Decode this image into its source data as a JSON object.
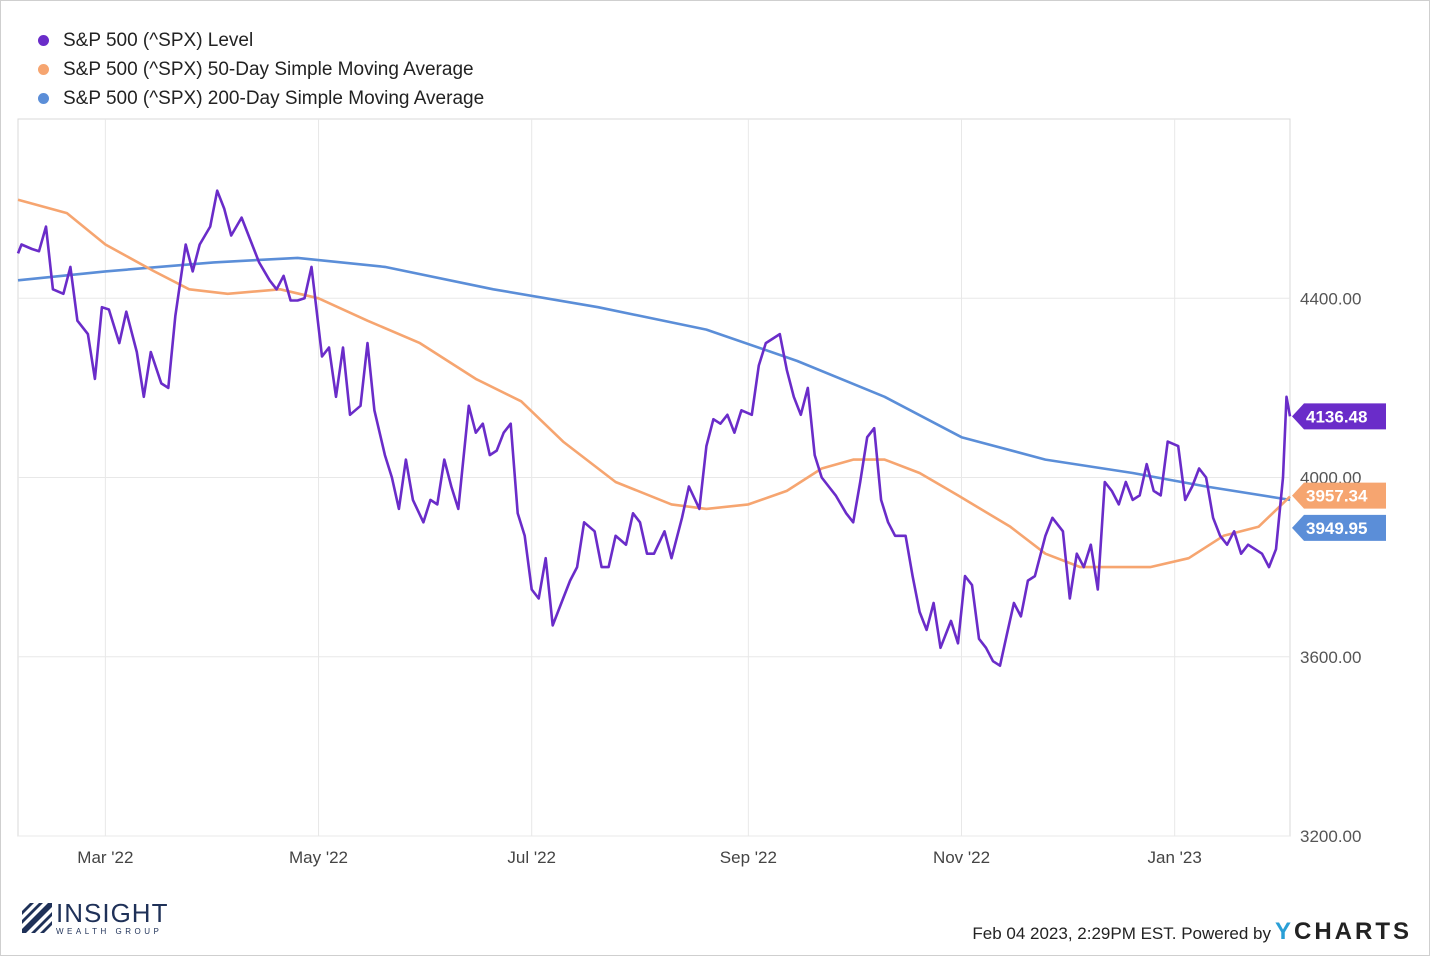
{
  "colors": {
    "level": "#6a2cc9",
    "sma50": "#f6a570",
    "sma200": "#5b8ed8",
    "grid": "#e8e8e8"
  },
  "chart_data": {
    "type": "line",
    "ylim": [
      3200,
      4800
    ],
    "yticks": [
      "4400.00",
      "4000.00",
      "3600.00",
      "3200.00"
    ],
    "ytick_values": [
      4400,
      4000,
      3600,
      3200
    ],
    "xticks": [
      "Mar '22",
      "May '22",
      "Jul '22",
      "Sep '22",
      "Nov '22",
      "Jan '23"
    ],
    "xtick_dates": [
      "2022-03-01",
      "2022-05-01",
      "2022-07-01",
      "2022-09-01",
      "2022-11-01",
      "2023-01-01"
    ],
    "xlim": [
      "2022-02-04",
      "2023-02-03"
    ],
    "grid": true,
    "legend_position": "top-left",
    "series": [
      {
        "name": "S&P 500 (^SPX) Level",
        "color": "#6a2cc9",
        "end_label": "4136.48",
        "points": [
          [
            "2022-02-04",
            4500
          ],
          [
            "2022-02-05",
            4520
          ],
          [
            "2022-02-08",
            4510
          ],
          [
            "2022-02-10",
            4505
          ],
          [
            "2022-02-12",
            4560
          ],
          [
            "2022-02-14",
            4420
          ],
          [
            "2022-02-17",
            4410
          ],
          [
            "2022-02-19",
            4470
          ],
          [
            "2022-02-21",
            4350
          ],
          [
            "2022-02-24",
            4320
          ],
          [
            "2022-02-26",
            4220
          ],
          [
            "2022-02-28",
            4380
          ],
          [
            "2022-03-02",
            4375
          ],
          [
            "2022-03-05",
            4300
          ],
          [
            "2022-03-07",
            4370
          ],
          [
            "2022-03-10",
            4280
          ],
          [
            "2022-03-12",
            4180
          ],
          [
            "2022-03-14",
            4280
          ],
          [
            "2022-03-17",
            4210
          ],
          [
            "2022-03-19",
            4200
          ],
          [
            "2022-03-21",
            4360
          ],
          [
            "2022-03-24",
            4520
          ],
          [
            "2022-03-26",
            4460
          ],
          [
            "2022-03-28",
            4520
          ],
          [
            "2022-03-31",
            4560
          ],
          [
            "2022-04-02",
            4640
          ],
          [
            "2022-04-04",
            4600
          ],
          [
            "2022-04-06",
            4540
          ],
          [
            "2022-04-09",
            4580
          ],
          [
            "2022-04-12",
            4520
          ],
          [
            "2022-04-14",
            4480
          ],
          [
            "2022-04-17",
            4440
          ],
          [
            "2022-04-19",
            4420
          ],
          [
            "2022-04-21",
            4450
          ],
          [
            "2022-04-23",
            4395
          ],
          [
            "2022-04-25",
            4395
          ],
          [
            "2022-04-27",
            4400
          ],
          [
            "2022-04-29",
            4470
          ],
          [
            "2022-05-02",
            4270
          ],
          [
            "2022-05-04",
            4290
          ],
          [
            "2022-05-06",
            4180
          ],
          [
            "2022-05-08",
            4290
          ],
          [
            "2022-05-10",
            4140
          ],
          [
            "2022-05-13",
            4160
          ],
          [
            "2022-05-15",
            4300
          ],
          [
            "2022-05-17",
            4150
          ],
          [
            "2022-05-20",
            4050
          ],
          [
            "2022-05-22",
            4000
          ],
          [
            "2022-05-24",
            3930
          ],
          [
            "2022-05-26",
            4040
          ],
          [
            "2022-05-28",
            3950
          ],
          [
            "2022-05-31",
            3900
          ],
          [
            "2022-06-02",
            3950
          ],
          [
            "2022-06-04",
            3940
          ],
          [
            "2022-06-06",
            4040
          ],
          [
            "2022-06-08",
            3980
          ],
          [
            "2022-06-10",
            3930
          ],
          [
            "2022-06-13",
            4160
          ],
          [
            "2022-06-15",
            4100
          ],
          [
            "2022-06-17",
            4120
          ],
          [
            "2022-06-19",
            4050
          ],
          [
            "2022-06-21",
            4060
          ],
          [
            "2022-06-23",
            4100
          ],
          [
            "2022-06-25",
            4120
          ],
          [
            "2022-06-27",
            3920
          ],
          [
            "2022-06-29",
            3870
          ],
          [
            "2022-07-01",
            3750
          ],
          [
            "2022-07-03",
            3730
          ],
          [
            "2022-07-05",
            3820
          ],
          [
            "2022-07-07",
            3670
          ],
          [
            "2022-07-10",
            3730
          ],
          [
            "2022-07-12",
            3770
          ],
          [
            "2022-07-14",
            3800
          ],
          [
            "2022-07-16",
            3900
          ],
          [
            "2022-07-19",
            3880
          ],
          [
            "2022-07-21",
            3800
          ],
          [
            "2022-07-23",
            3800
          ],
          [
            "2022-07-25",
            3870
          ],
          [
            "2022-07-28",
            3850
          ],
          [
            "2022-07-30",
            3920
          ],
          [
            "2022-08-01",
            3900
          ],
          [
            "2022-08-03",
            3830
          ],
          [
            "2022-08-05",
            3830
          ],
          [
            "2022-08-08",
            3880
          ],
          [
            "2022-08-10",
            3820
          ],
          [
            "2022-08-13",
            3910
          ],
          [
            "2022-08-15",
            3980
          ],
          [
            "2022-08-18",
            3930
          ],
          [
            "2022-08-20",
            4070
          ],
          [
            "2022-08-22",
            4130
          ],
          [
            "2022-08-24",
            4120
          ],
          [
            "2022-08-26",
            4140
          ],
          [
            "2022-08-28",
            4100
          ],
          [
            "2022-08-30",
            4150
          ],
          [
            "2022-09-02",
            4140
          ],
          [
            "2022-09-04",
            4250
          ],
          [
            "2022-09-06",
            4300
          ],
          [
            "2022-09-08",
            4310
          ],
          [
            "2022-09-10",
            4320
          ],
          [
            "2022-09-12",
            4240
          ],
          [
            "2022-09-14",
            4180
          ],
          [
            "2022-09-16",
            4140
          ],
          [
            "2022-09-18",
            4200
          ],
          [
            "2022-09-20",
            4050
          ],
          [
            "2022-09-22",
            4000
          ],
          [
            "2022-09-24",
            3980
          ],
          [
            "2022-09-26",
            3960
          ],
          [
            "2022-09-29",
            3920
          ],
          [
            "2022-10-01",
            3900
          ],
          [
            "2022-10-03",
            3990
          ],
          [
            "2022-10-05",
            4090
          ],
          [
            "2022-10-07",
            4110
          ],
          [
            "2022-10-09",
            3950
          ],
          [
            "2022-10-11",
            3900
          ],
          [
            "2022-10-13",
            3870
          ],
          [
            "2022-10-16",
            3870
          ],
          [
            "2022-10-18",
            3780
          ],
          [
            "2022-10-20",
            3700
          ],
          [
            "2022-10-22",
            3660
          ],
          [
            "2022-10-24",
            3720
          ],
          [
            "2022-10-26",
            3620
          ],
          [
            "2022-10-29",
            3680
          ],
          [
            "2022-10-31",
            3630
          ],
          [
            "2022-11-02",
            3780
          ],
          [
            "2022-11-04",
            3760
          ],
          [
            "2022-11-06",
            3640
          ],
          [
            "2022-11-08",
            3620
          ],
          [
            "2022-11-10",
            3590
          ],
          [
            "2022-11-12",
            3580
          ],
          [
            "2022-11-14",
            3650
          ],
          [
            "2022-11-16",
            3720
          ],
          [
            "2022-11-18",
            3690
          ],
          [
            "2022-11-20",
            3770
          ],
          [
            "2022-11-22",
            3780
          ],
          [
            "2022-11-25",
            3870
          ],
          [
            "2022-11-27",
            3910
          ],
          [
            "2022-11-30",
            3880
          ],
          [
            "2022-12-02",
            3730
          ],
          [
            "2022-12-04",
            3830
          ],
          [
            "2022-12-06",
            3800
          ],
          [
            "2022-12-08",
            3850
          ],
          [
            "2022-12-10",
            3750
          ],
          [
            "2022-12-12",
            3990
          ],
          [
            "2022-12-14",
            3970
          ],
          [
            "2022-12-16",
            3940
          ],
          [
            "2022-12-18",
            3990
          ],
          [
            "2022-12-20",
            3950
          ],
          [
            "2022-12-22",
            3960
          ],
          [
            "2022-12-24",
            4030
          ],
          [
            "2022-12-26",
            3970
          ],
          [
            "2022-12-28",
            3960
          ],
          [
            "2022-12-30",
            4080
          ],
          [
            "2023-01-02",
            4070
          ],
          [
            "2023-01-04",
            3950
          ],
          [
            "2023-01-06",
            3980
          ],
          [
            "2023-01-08",
            4020
          ],
          [
            "2023-01-10",
            4000
          ],
          [
            "2023-01-12",
            3910
          ],
          [
            "2023-01-14",
            3870
          ],
          [
            "2023-01-16",
            3850
          ],
          [
            "2023-01-18",
            3880
          ],
          [
            "2023-01-20",
            3830
          ],
          [
            "2023-01-22",
            3850
          ],
          [
            "2023-01-24",
            3840
          ],
          [
            "2023-01-26",
            3830
          ],
          [
            "2023-01-28",
            3800
          ],
          [
            "2023-01-30",
            3840
          ],
          [
            "2023-02-01",
            4000
          ],
          [
            "2023-02-02",
            4180
          ],
          [
            "2023-02-03",
            4136.48
          ]
        ]
      },
      {
        "name": "S&P 500 (^SPX) 50-Day Simple Moving Average",
        "color": "#f6a570",
        "end_label": "3957.34",
        "points": [
          [
            "2022-02-04",
            4620
          ],
          [
            "2022-02-18",
            4590
          ],
          [
            "2022-03-01",
            4520
          ],
          [
            "2022-03-15",
            4460
          ],
          [
            "2022-03-25",
            4420
          ],
          [
            "2022-04-05",
            4410
          ],
          [
            "2022-04-20",
            4420
          ],
          [
            "2022-05-01",
            4400
          ],
          [
            "2022-05-15",
            4350
          ],
          [
            "2022-05-30",
            4300
          ],
          [
            "2022-06-15",
            4220
          ],
          [
            "2022-06-28",
            4170
          ],
          [
            "2022-07-10",
            4080
          ],
          [
            "2022-07-25",
            3990
          ],
          [
            "2022-08-10",
            3940
          ],
          [
            "2022-08-20",
            3930
          ],
          [
            "2022-09-01",
            3940
          ],
          [
            "2022-09-12",
            3970
          ],
          [
            "2022-09-22",
            4020
          ],
          [
            "2022-10-01",
            4040
          ],
          [
            "2022-10-10",
            4040
          ],
          [
            "2022-10-20",
            4010
          ],
          [
            "2022-10-31",
            3960
          ],
          [
            "2022-11-15",
            3890
          ],
          [
            "2022-11-25",
            3830
          ],
          [
            "2022-12-05",
            3800
          ],
          [
            "2022-12-15",
            3800
          ],
          [
            "2022-12-25",
            3800
          ],
          [
            "2023-01-05",
            3820
          ],
          [
            "2023-01-15",
            3870
          ],
          [
            "2023-01-25",
            3890
          ],
          [
            "2023-02-03",
            3957.34
          ]
        ]
      },
      {
        "name": "S&P 500 (^SPX) 200-Day Simple Moving Average",
        "color": "#5b8ed8",
        "end_label": "3949.95",
        "points": [
          [
            "2022-02-04",
            4440
          ],
          [
            "2022-03-01",
            4460
          ],
          [
            "2022-04-01",
            4480
          ],
          [
            "2022-04-25",
            4490
          ],
          [
            "2022-05-20",
            4470
          ],
          [
            "2022-06-20",
            4420
          ],
          [
            "2022-07-20",
            4380
          ],
          [
            "2022-08-20",
            4330
          ],
          [
            "2022-09-15",
            4260
          ],
          [
            "2022-10-10",
            4180
          ],
          [
            "2022-11-01",
            4090
          ],
          [
            "2022-11-25",
            4040
          ],
          [
            "2022-12-20",
            4010
          ],
          [
            "2023-01-10",
            3980
          ],
          [
            "2023-02-03",
            3949.95
          ]
        ]
      }
    ]
  },
  "footer": {
    "timestamp": "Feb 04 2023, 2:29PM EST. Powered by",
    "ycharts_y": "Y",
    "ycharts_rest": "CHARTS",
    "brand_name": "INSIGHT",
    "brand_sub": "WEALTH GROUP"
  }
}
